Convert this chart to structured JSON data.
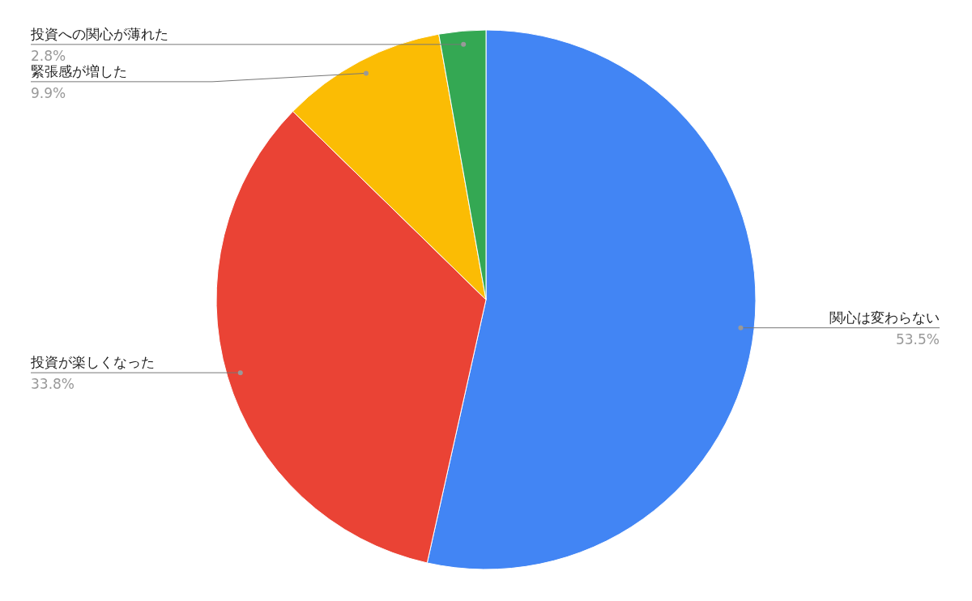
{
  "chart_data": {
    "type": "pie",
    "categories": [
      "関心は変わらない",
      "投資が楽しくなった",
      "緊張感が増した",
      "投資への関心が薄れた"
    ],
    "values": [
      53.5,
      33.8,
      9.9,
      2.8
    ],
    "colors": [
      "#4285f4",
      "#ea4335",
      "#fbbc04",
      "#34a853"
    ],
    "value_labels": [
      "53.5%",
      "33.8%",
      "9.9%",
      "2.8%"
    ]
  }
}
